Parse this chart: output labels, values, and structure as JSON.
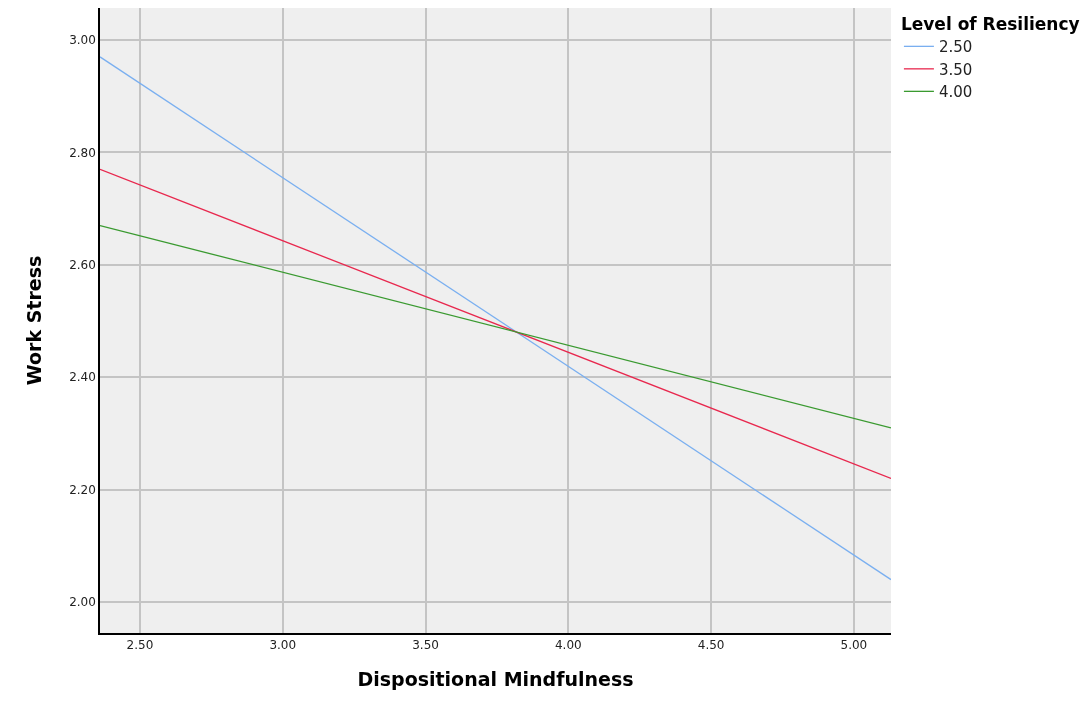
{
  "chart_data": {
    "type": "line",
    "xlabel": "Dispositional Mindfulness",
    "ylabel": "Work Stress",
    "legend_title": "Level of Resiliency",
    "x": [
      2.36,
      5.13
    ],
    "series": [
      {
        "name": "2.50",
        "color": "#7aaff0",
        "values": [
          2.97,
          2.04
        ]
      },
      {
        "name": "3.50",
        "color": "#e8284e",
        "values": [
          2.77,
          2.22
        ]
      },
      {
        "name": "4.00",
        "color": "#3a9a30",
        "values": [
          2.67,
          2.31
        ]
      }
    ],
    "xlim": [
      2.36,
      5.13
    ],
    "xticks": [
      {
        "value": 2.5,
        "label": "2.50"
      },
      {
        "value": 3,
        "label": "3.00"
      },
      {
        "value": 3.5,
        "label": "3.50"
      },
      {
        "value": 4,
        "label": "4.00"
      },
      {
        "value": 4.5,
        "label": "4.50"
      },
      {
        "value": 5,
        "label": "5.00"
      }
    ],
    "ylim": [
      1.945,
      3.057
    ],
    "yticks": [
      {
        "value": 2,
        "label": "2.00"
      },
      {
        "value": 2.2,
        "label": "2.20"
      },
      {
        "value": 2.4,
        "label": "2.40"
      },
      {
        "value": 2.6,
        "label": "2.60"
      },
      {
        "value": 2.8,
        "label": "2.80"
      },
      {
        "value": 3,
        "label": "3.00"
      }
    ],
    "grid": true,
    "legend": "top right",
    "marker": "none",
    "line_style": "solid"
  }
}
